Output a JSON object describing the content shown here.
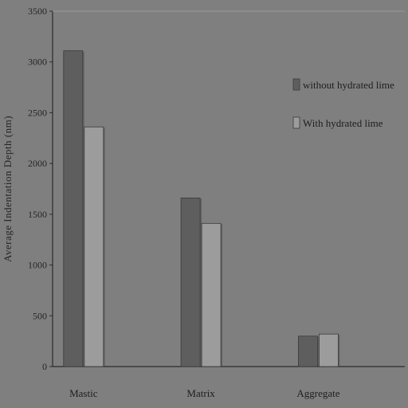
{
  "chart_data": {
    "type": "bar",
    "title": "",
    "xlabel": "",
    "ylabel": "Average Indentation Depth (nm)",
    "categories": [
      "Mastic",
      "Matrix",
      "Aggregate"
    ],
    "series": [
      {
        "name": "without hydrated lime",
        "values": [
          3110,
          1660,
          300
        ],
        "color": "#5e5e5e"
      },
      {
        "name": "With hydrated lime",
        "values": [
          2360,
          1410,
          320
        ],
        "color": "#9c9c9c"
      }
    ],
    "ylim": [
      0,
      3500
    ],
    "yticks": [
      "0",
      "500",
      "1000",
      "1500",
      "2000",
      "2500",
      "3000",
      "3500"
    ],
    "grid": false,
    "legend_position": "top-right",
    "background": "#7f7f7f"
  }
}
